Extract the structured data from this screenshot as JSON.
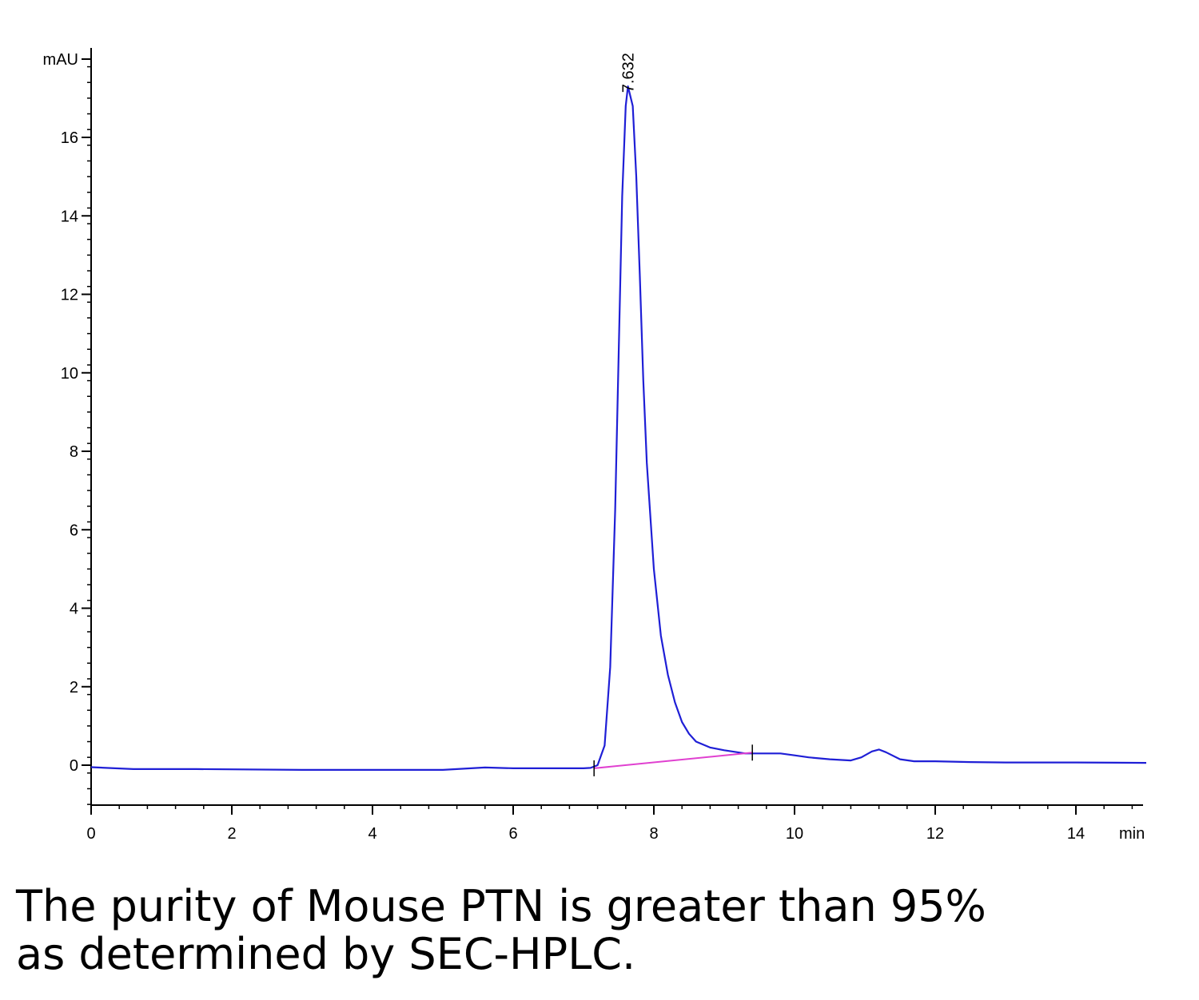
{
  "chart_data": {
    "type": "line",
    "title": "",
    "xlabel": "min",
    "ylabel": "mAU",
    "xlim": [
      0,
      15
    ],
    "ylim": [
      -1,
      18
    ],
    "x_ticks": [
      0,
      2,
      4,
      6,
      8,
      10,
      12,
      14
    ],
    "y_ticks": [
      0,
      2,
      4,
      6,
      8,
      10,
      12,
      14,
      16
    ],
    "grid": false,
    "peak_labels": [
      {
        "x": 7.632,
        "y": 17.3,
        "text": "7.632"
      }
    ],
    "series": [
      {
        "color": "#1f1fd6",
        "x": [
          0,
          0.6,
          1.5,
          3,
          4,
          5,
          5.6,
          6,
          7,
          7.1,
          7.2,
          7.3,
          7.38,
          7.45,
          7.5,
          7.55,
          7.6,
          7.632,
          7.7,
          7.75,
          7.8,
          7.85,
          7.9,
          8.0,
          8.1,
          8.2,
          8.3,
          8.4,
          8.5,
          8.6,
          8.8,
          9.0,
          9.3,
          9.6,
          9.8,
          10.0,
          10.2,
          10.5,
          10.8,
          10.95,
          11.1,
          11.2,
          11.3,
          11.5,
          11.7,
          12,
          12.5,
          13,
          14,
          15
        ],
        "y": [
          -0.05,
          -0.1,
          -0.1,
          -0.12,
          -0.12,
          -0.12,
          -0.06,
          -0.08,
          -0.08,
          -0.07,
          0.0,
          0.5,
          2.5,
          6.5,
          10.5,
          14.5,
          16.8,
          17.3,
          16.8,
          15.0,
          12.5,
          9.8,
          7.7,
          5.0,
          3.3,
          2.3,
          1.6,
          1.1,
          0.8,
          0.6,
          0.45,
          0.38,
          0.3,
          0.3,
          0.3,
          0.25,
          0.2,
          0.15,
          0.12,
          0.2,
          0.35,
          0.4,
          0.33,
          0.15,
          0.1,
          0.1,
          0.08,
          0.07,
          0.07,
          0.06
        ]
      },
      {
        "color": "#e040d0",
        "x": [
          7.15,
          9.4
        ],
        "y": [
          -0.08,
          0.32
        ]
      }
    ],
    "baseline_markers": [
      7.15,
      9.4
    ]
  },
  "caption": {
    "line1": "The purity of Mouse PTN is greater than 95%",
    "line2": "as determined by SEC-HPLC."
  }
}
